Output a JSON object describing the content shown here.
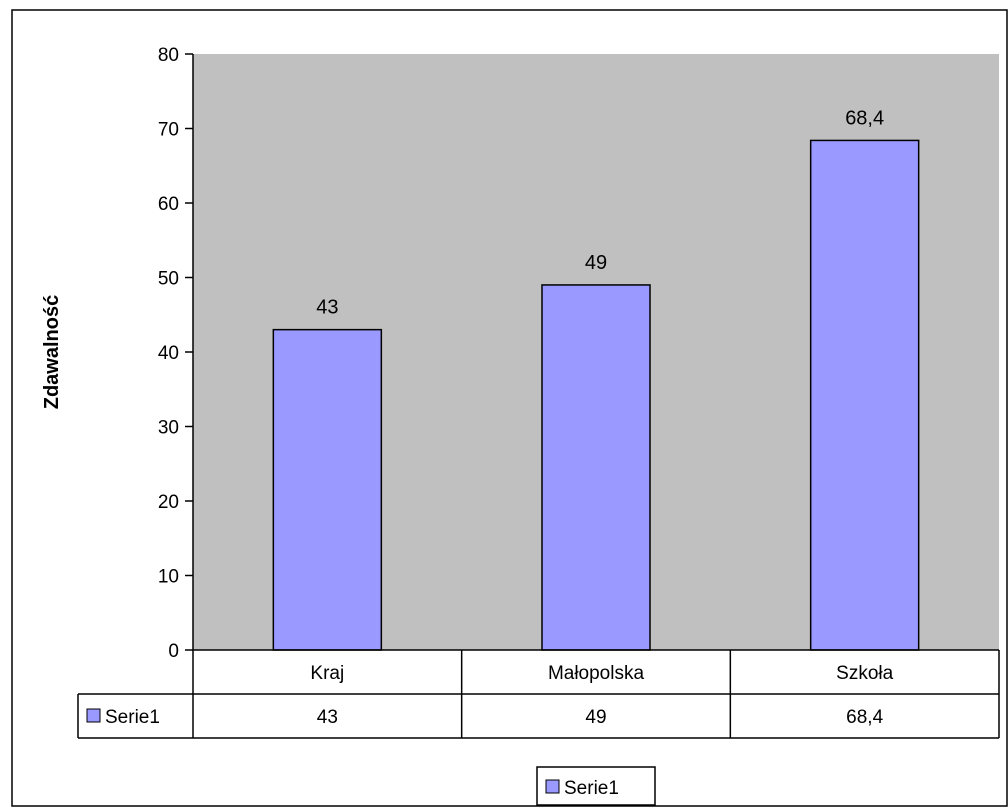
{
  "chart_data": {
    "type": "bar",
    "title": "",
    "xlabel": "",
    "ylabel": "Zdawalność",
    "ylim": [
      0,
      80
    ],
    "yticks": [
      0,
      10,
      20,
      30,
      40,
      50,
      60,
      70,
      80
    ],
    "grid": false,
    "categories": [
      "Kraj",
      "Małopolska",
      "Szkoła"
    ],
    "series": [
      {
        "name": "Serie1",
        "values": [
          43,
          49,
          68.4
        ],
        "value_labels": [
          "43",
          "49",
          "68,4"
        ],
        "color": "#9999ff"
      }
    ],
    "data_table": {
      "row_label": "Serie1",
      "cells": [
        "43",
        "49",
        "68,4"
      ]
    },
    "legend": {
      "position": "bottom",
      "label": "Serie1"
    },
    "colors": {
      "plot_background": "#c0c0c0",
      "bar_fill": "#9999ff",
      "border": "#000000"
    }
  }
}
